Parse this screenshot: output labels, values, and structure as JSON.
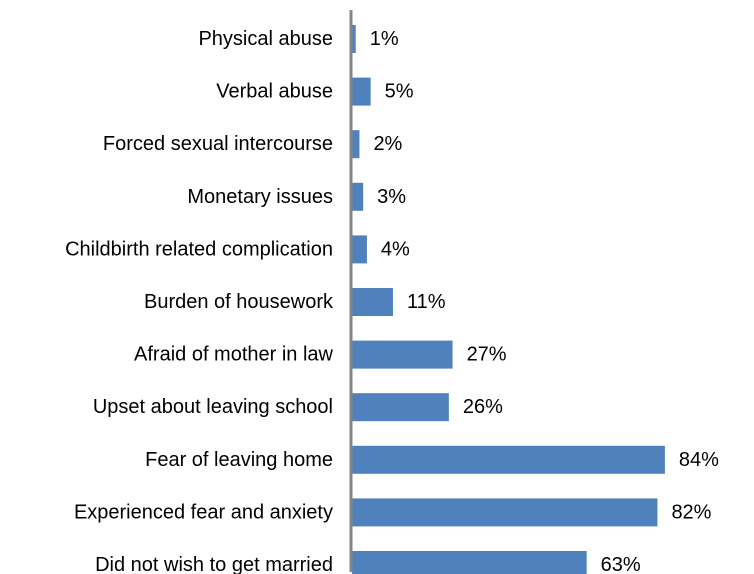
{
  "chart_data": {
    "type": "bar",
    "orientation": "horizontal",
    "categories": [
      "Physical abuse",
      "Verbal abuse",
      "Forced sexual intercourse",
      "Monetary issues",
      "Childbirth related complication",
      "Burden of housework",
      "Afraid of mother in law",
      "Upset about leaving school",
      "Fear of leaving home",
      "Experienced fear and anxiety",
      "Did not wish to get married"
    ],
    "values": [
      1,
      5,
      2,
      3,
      4,
      11,
      27,
      26,
      84,
      82,
      63
    ],
    "value_labels": [
      "1%",
      "5%",
      "2%",
      "3%",
      "4%",
      "11%",
      "27%",
      "26%",
      "84%",
      "82%",
      "63%"
    ],
    "unit": "%",
    "xlim": [
      0,
      100
    ],
    "grid": false,
    "legend": "none",
    "title": "",
    "xlabel": "",
    "ylabel": "",
    "bar_color": "#4f81bd",
    "axis_color": "#868686"
  }
}
